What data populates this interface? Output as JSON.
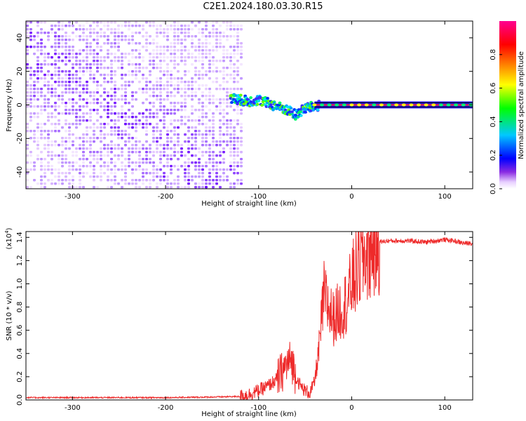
{
  "title": "C2E1.2024.180.03.30.R15",
  "chart_data": [
    {
      "type": "heatmap",
      "xlabel": "Height of straight line (km)",
      "ylabel": "Frequency (Hz)",
      "xlim": [
        -350,
        130
      ],
      "ylim": [
        -50,
        50
      ],
      "xticks": [
        -300,
        -200,
        -100,
        0,
        100
      ],
      "yticks": [
        -40,
        -20,
        0,
        20,
        40
      ],
      "colorbar": {
        "label": "Normalized spectral amplitude",
        "range": [
          0.0,
          1.0
        ],
        "ticks": [
          "0.0",
          "0.2",
          "0.4",
          "0.6",
          "0.8"
        ],
        "colors": [
          "#ffffff",
          "#8a2be2",
          "#0000ff",
          "#00c8ff",
          "#00ff00",
          "#ffff00",
          "#ff8000",
          "#ff0000",
          "#ff0090"
        ]
      },
      "noise_region_x": [
        -350,
        -120
      ],
      "signal_line": {
        "x": [
          -130,
          -120,
          -110,
          -100,
          -90,
          -80,
          -70,
          -60,
          -50,
          -40,
          -30,
          -20,
          -10,
          0,
          50,
          100,
          130
        ],
        "freq": [
          4,
          3,
          2,
          3,
          1,
          -1,
          -3,
          -6,
          -2,
          -1,
          0,
          0,
          0,
          0,
          0,
          0,
          0
        ]
      },
      "grid": false
    },
    {
      "type": "line",
      "xlabel": "Height of straight line (km)",
      "ylabel": "SNR (10 * v/v)",
      "yscale_label": "(x10",
      "yscale_exp": "4",
      "xlim": [
        -350,
        130
      ],
      "ylim": [
        0.0,
        1.45
      ],
      "xticks": [
        -300,
        -200,
        -100,
        0,
        100
      ],
      "yticks": [
        "0.0",
        "0.2",
        "0.4",
        "0.6",
        "0.8",
        "1.0",
        "1.2",
        "1.4"
      ],
      "color": "#ee2a2a",
      "x": [
        -350,
        -300,
        -250,
        -200,
        -150,
        -120,
        -110,
        -100,
        -90,
        -80,
        -70,
        -65,
        -60,
        -55,
        -50,
        -45,
        -40,
        -35,
        -30,
        -25,
        -20,
        -15,
        -10,
        -5,
        0,
        10,
        20,
        30,
        40,
        60,
        80,
        100,
        110,
        120,
        130
      ],
      "y": [
        0.02,
        0.02,
        0.02,
        0.02,
        0.025,
        0.03,
        0.05,
        0.08,
        0.12,
        0.18,
        0.3,
        0.35,
        0.2,
        0.12,
        0.08,
        0.06,
        0.15,
        0.45,
        0.9,
        0.8,
        0.7,
        0.75,
        0.8,
        0.85,
        1.0,
        1.2,
        1.3,
        1.36,
        1.37,
        1.37,
        1.36,
        1.38,
        1.37,
        1.35,
        1.35
      ],
      "grid": false
    }
  ]
}
